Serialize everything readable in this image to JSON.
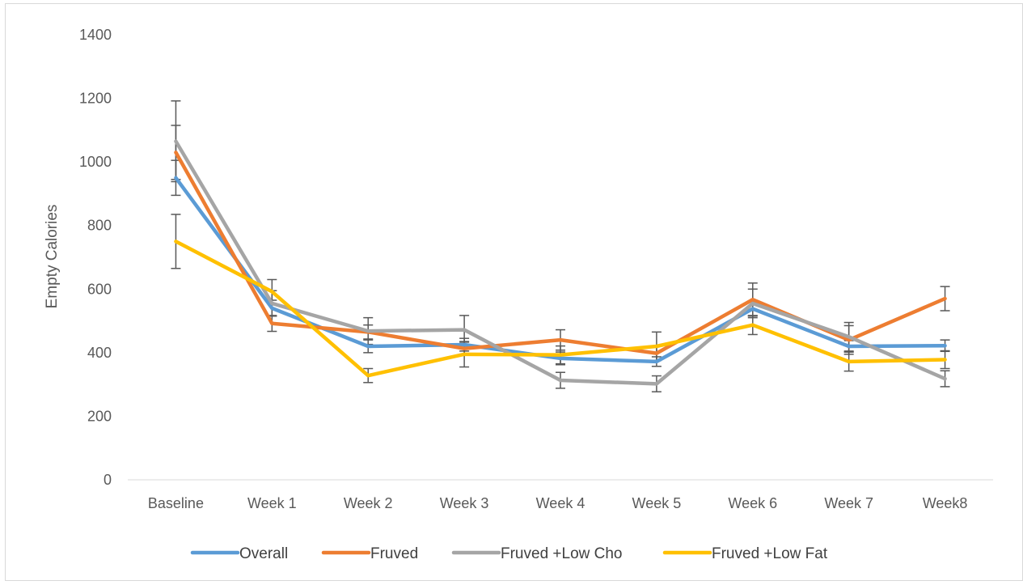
{
  "chart_data": {
    "type": "line",
    "ylabel": "Empty Calories",
    "xlabel": "",
    "ylim": [
      0,
      1400
    ],
    "yticks": [
      0,
      200,
      400,
      600,
      800,
      1000,
      1200,
      1400
    ],
    "grid": false,
    "legend_position": "bottom",
    "categories": [
      "Baseline",
      "Week 1",
      "Week 2",
      "Week 3",
      "Week 4",
      "Week 5",
      "Week 6",
      "Week 7",
      "Week8"
    ],
    "series": [
      {
        "name": "Overall",
        "color": "#5b9bd5",
        "values": [
          950,
          540,
          420,
          425,
          382,
          372,
          538,
          420,
          422
        ],
        "error": [
          55,
          25,
          20,
          20,
          20,
          15,
          22,
          18,
          18
        ]
      },
      {
        "name": "Fruved",
        "color": "#ed7d31",
        "values": [
          1030,
          492,
          465,
          413,
          440,
          398,
          567,
          440,
          570
        ],
        "error": [
          85,
          25,
          22,
          20,
          32,
          22,
          52,
          45,
          38
        ]
      },
      {
        "name": "Fruved +Low Cho",
        "color": "#a5a5a5",
        "values": [
          1065,
          555,
          468,
          472,
          313,
          302,
          555,
          450,
          318
        ],
        "error": [
          127,
          40,
          42,
          45,
          25,
          25,
          45,
          45,
          25
        ]
      },
      {
        "name": "Fruved +Low Fat",
        "color": "#ffc000",
        "values": [
          750,
          592,
          328,
          395,
          393,
          420,
          487,
          372,
          378
        ],
        "error": [
          85,
          38,
          22,
          40,
          28,
          45,
          30,
          30,
          28
        ]
      }
    ]
  }
}
